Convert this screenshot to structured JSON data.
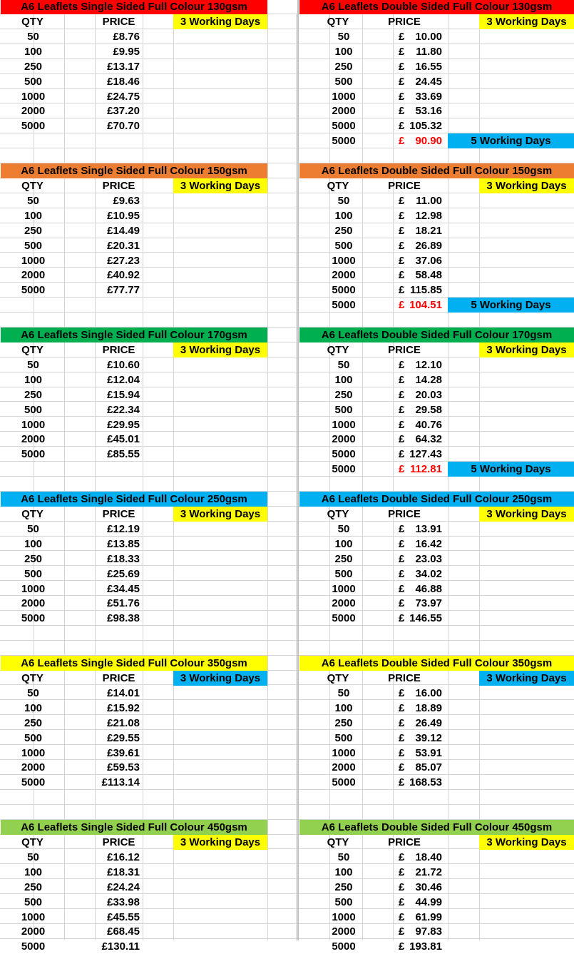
{
  "headers": {
    "qty": "QTY",
    "price": "PRICE"
  },
  "colors": {
    "red": "#ff0000",
    "orange": "#ed7d31",
    "green": "#00b050",
    "blue": "#00b0f0",
    "yellow": "#ffff00",
    "lightgreen": "#92d050",
    "price_red": "#ff0000"
  },
  "blocks": [
    {
      "color": "red",
      "left": {
        "title": "A6 Leaflets Single Sided Full Colour 130gsm",
        "badge": "3 Working Days",
        "badge_color": "yellow",
        "rows": [
          [
            "50",
            "£8.76"
          ],
          [
            "100",
            "£9.95"
          ],
          [
            "250",
            "£13.17"
          ],
          [
            "500",
            "£18.46"
          ],
          [
            "1000",
            "£24.75"
          ],
          [
            "2000",
            "£37.20"
          ],
          [
            "5000",
            "£70.70"
          ]
        ]
      },
      "right": {
        "title": "A6 Leaflets Double Sided Full Colour 130gsm",
        "badge": "3 Working Days",
        "badge_color": "yellow",
        "rows": [
          [
            "50",
            "10.00"
          ],
          [
            "100",
            "11.80"
          ],
          [
            "250",
            "16.55"
          ],
          [
            "500",
            "24.45"
          ],
          [
            "1000",
            "33.69"
          ],
          [
            "2000",
            "53.16"
          ],
          [
            "5000",
            "105.32"
          ]
        ],
        "extra": {
          "qty": "5000",
          "price": "90.90",
          "badge": "5 Working Days"
        }
      }
    },
    {
      "color": "orange",
      "left": {
        "title": "A6 Leaflets Single Sided Full Colour 150gsm",
        "badge": "3 Working Days",
        "badge_color": "yellow",
        "rows": [
          [
            "50",
            "£9.63"
          ],
          [
            "100",
            "£10.95"
          ],
          [
            "250",
            "£14.49"
          ],
          [
            "500",
            "£20.31"
          ],
          [
            "1000",
            "£27.23"
          ],
          [
            "2000",
            "£40.92"
          ],
          [
            "5000",
            "£77.77"
          ]
        ]
      },
      "right": {
        "title": "A6 Leaflets Double Sided Full Colour 150gsm",
        "badge": "3 Working Days",
        "badge_color": "yellow",
        "rows": [
          [
            "50",
            "11.00"
          ],
          [
            "100",
            "12.98"
          ],
          [
            "250",
            "18.21"
          ],
          [
            "500",
            "26.89"
          ],
          [
            "1000",
            "37.06"
          ],
          [
            "2000",
            "58.48"
          ],
          [
            "5000",
            "115.85"
          ]
        ],
        "extra": {
          "qty": "5000",
          "price": "104.51",
          "badge": "5 Working Days"
        }
      }
    },
    {
      "color": "green",
      "left": {
        "title": "A6 Leaflets Single Sided Full Colour 170gsm",
        "badge": "3 Working Days",
        "badge_color": "yellow",
        "rows": [
          [
            "50",
            "£10.60"
          ],
          [
            "100",
            "£12.04"
          ],
          [
            "250",
            "£15.94"
          ],
          [
            "500",
            "£22.34"
          ],
          [
            "1000",
            "£29.95"
          ],
          [
            "2000",
            "£45.01"
          ],
          [
            "5000",
            "£85.55"
          ]
        ]
      },
      "right": {
        "title": "A6 Leaflets Double Sided Full Colour 170gsm",
        "badge": "3 Working Days",
        "badge_color": "yellow",
        "rows": [
          [
            "50",
            "12.10"
          ],
          [
            "100",
            "14.28"
          ],
          [
            "250",
            "20.03"
          ],
          [
            "500",
            "29.58"
          ],
          [
            "1000",
            "40.76"
          ],
          [
            "2000",
            "64.32"
          ],
          [
            "5000",
            "127.43"
          ]
        ],
        "extra": {
          "qty": "5000",
          "price": "112.81",
          "badge": "5 Working Days"
        }
      }
    },
    {
      "color": "blue",
      "left": {
        "title": "A6 Leaflets Single Sided Full Colour 250gsm",
        "badge": "3 Working Days",
        "badge_color": "yellow",
        "rows": [
          [
            "50",
            "£12.19"
          ],
          [
            "100",
            "£13.85"
          ],
          [
            "250",
            "£18.33"
          ],
          [
            "500",
            "£25.69"
          ],
          [
            "1000",
            "£34.45"
          ],
          [
            "2000",
            "£51.76"
          ],
          [
            "5000",
            "£98.38"
          ]
        ]
      },
      "right": {
        "title": "A6 Leaflets Double Sided Full Colour 250gsm",
        "badge": "3 Working Days",
        "badge_color": "yellow",
        "rows": [
          [
            "50",
            "13.91"
          ],
          [
            "100",
            "16.42"
          ],
          [
            "250",
            "23.03"
          ],
          [
            "500",
            "34.02"
          ],
          [
            "1000",
            "46.88"
          ],
          [
            "2000",
            "73.97"
          ],
          [
            "5000",
            "146.55"
          ]
        ]
      }
    },
    {
      "color": "yellow",
      "left": {
        "title": "A6 Leaflets Single Sided Full Colour 350gsm",
        "badge": "3 Working Days",
        "badge_color": "blue",
        "rows": [
          [
            "50",
            "£14.01"
          ],
          [
            "100",
            "£15.92"
          ],
          [
            "250",
            "£21.08"
          ],
          [
            "500",
            "£29.55"
          ],
          [
            "1000",
            "£39.61"
          ],
          [
            "2000",
            "£59.53"
          ],
          [
            "5000",
            "£113.14"
          ]
        ]
      },
      "right": {
        "title": "A6 Leaflets Double Sided Full Colour 350gsm",
        "badge": "3 Working Days",
        "badge_color": "blue",
        "rows": [
          [
            "50",
            "16.00"
          ],
          [
            "100",
            "18.89"
          ],
          [
            "250",
            "26.49"
          ],
          [
            "500",
            "39.12"
          ],
          [
            "1000",
            "53.91"
          ],
          [
            "2000",
            "85.07"
          ],
          [
            "5000",
            "168.53"
          ]
        ]
      }
    },
    {
      "color": "lightgreen",
      "left": {
        "title": "A6 Leaflets Single Sided Full Colour 450gsm",
        "badge": "3 Working Days",
        "badge_color": "yellow",
        "rows": [
          [
            "50",
            "£16.12"
          ],
          [
            "100",
            "£18.31"
          ],
          [
            "250",
            "£24.24"
          ],
          [
            "500",
            "£33.98"
          ],
          [
            "1000",
            "£45.55"
          ],
          [
            "2000",
            "£68.45"
          ],
          [
            "5000",
            "£130.11"
          ]
        ]
      },
      "right": {
        "title": "A6 Leaflets Double Sided Full Colour 450gsm",
        "badge": "3 Working Days",
        "badge_color": "yellow",
        "rows": [
          [
            "50",
            "18.40"
          ],
          [
            "100",
            "21.72"
          ],
          [
            "250",
            "30.46"
          ],
          [
            "500",
            "44.99"
          ],
          [
            "1000",
            "61.99"
          ],
          [
            "2000",
            "97.83"
          ],
          [
            "5000",
            "193.81"
          ]
        ]
      }
    }
  ]
}
